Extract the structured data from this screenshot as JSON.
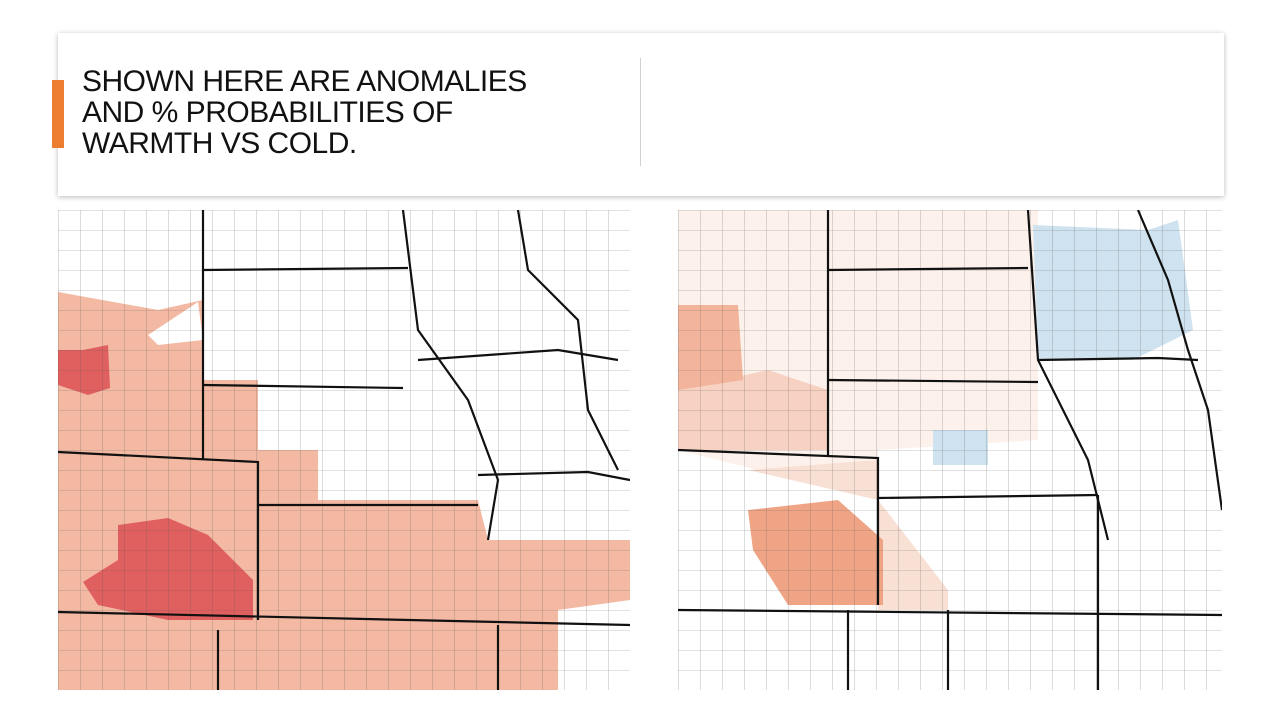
{
  "slide": {
    "title_lines": [
      "SHOWN HERE ARE ANOMALIES",
      "AND % PROBABILITIES OF",
      "WARMTH VS COLD."
    ]
  }
}
